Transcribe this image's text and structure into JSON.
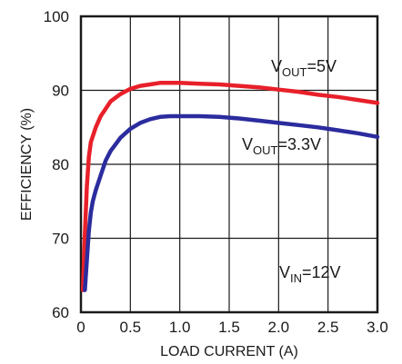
{
  "chart_data": {
    "type": "line",
    "title": "",
    "xlabel": "LOAD CURRENT (A)",
    "ylabel": "EFFICIENCY (%)",
    "xlim": [
      0,
      3.0
    ],
    "ylim": [
      60,
      100
    ],
    "xticks": [
      "0",
      "0.5",
      "1.0",
      "1.5",
      "2.0",
      "2.5",
      "3.0"
    ],
    "yticks": [
      "60",
      "70",
      "80",
      "90",
      "100"
    ],
    "grid": true,
    "annotations": [
      {
        "id": "vout5",
        "main": "V",
        "sub": "OUT",
        "rest": "=5V"
      },
      {
        "id": "vout33",
        "main": "V",
        "sub": "OUT",
        "rest": "=3.3V"
      },
      {
        "id": "vin",
        "main": "V",
        "sub": "IN",
        "rest": "=12V"
      }
    ],
    "series": [
      {
        "color": "#e8202a",
        "x": [
          0.02,
          0.04,
          0.06,
          0.08,
          0.1,
          0.15,
          0.2,
          0.3,
          0.4,
          0.5,
          0.6,
          0.7,
          0.8,
          0.9,
          1.0,
          1.2,
          1.4,
          1.6,
          1.8,
          2.0,
          2.2,
          2.4,
          2.6,
          2.8,
          3.0
        ],
        "y": [
          63,
          70.5,
          77,
          81,
          83,
          85,
          86.5,
          88.5,
          89.5,
          90.2,
          90.6,
          90.8,
          91.0,
          91.0,
          91.0,
          90.9,
          90.8,
          90.6,
          90.4,
          90.1,
          89.8,
          89.4,
          89.1,
          88.7,
          88.3
        ]
      },
      {
        "color": "#2b2c9e",
        "x": [
          0.04,
          0.06,
          0.08,
          0.1,
          0.12,
          0.15,
          0.2,
          0.25,
          0.3,
          0.4,
          0.5,
          0.6,
          0.7,
          0.8,
          0.9,
          1.0,
          1.2,
          1.4,
          1.6,
          1.8,
          2.0,
          2.2,
          2.4,
          2.6,
          2.8,
          3.0
        ],
        "y": [
          63,
          67,
          71,
          73.5,
          75,
          76.5,
          78.5,
          80.5,
          81.8,
          83.6,
          84.8,
          85.6,
          86.1,
          86.4,
          86.5,
          86.5,
          86.5,
          86.4,
          86.2,
          85.9,
          85.6,
          85.3,
          85.0,
          84.6,
          84.2,
          83.7
        ]
      }
    ]
  }
}
